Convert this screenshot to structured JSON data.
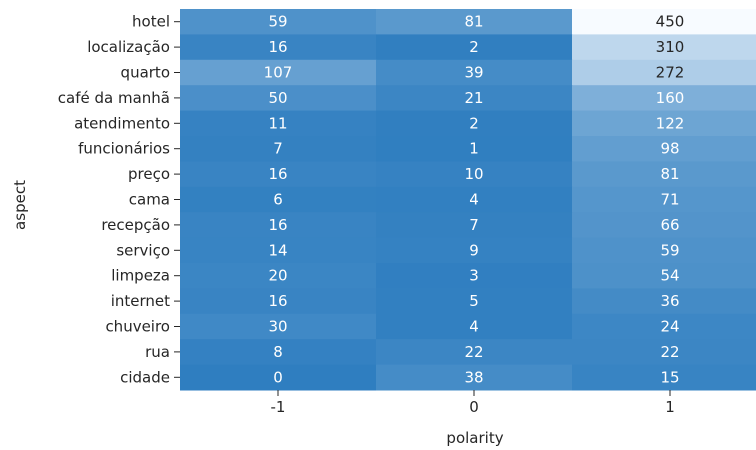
{
  "chart_data": {
    "type": "heatmap",
    "title": "",
    "xlabel": "polarity",
    "ylabel": "aspect",
    "x_categories": [
      "-1",
      "0",
      "1"
    ],
    "y_categories": [
      "hotel",
      "localização",
      "quarto",
      "café da manhã",
      "atendimento",
      "funcionários",
      "preço",
      "cama",
      "recepção",
      "serviço",
      "limpeza",
      "internet",
      "chuveiro",
      "rua",
      "cidade"
    ],
    "values": [
      [
        59,
        81,
        450
      ],
      [
        16,
        2,
        310
      ],
      [
        107,
        39,
        272
      ],
      [
        50,
        21,
        160
      ],
      [
        11,
        2,
        122
      ],
      [
        7,
        1,
        98
      ],
      [
        16,
        10,
        81
      ],
      [
        6,
        4,
        71
      ],
      [
        16,
        7,
        66
      ],
      [
        14,
        9,
        59
      ],
      [
        20,
        3,
        54
      ],
      [
        16,
        5,
        36
      ],
      [
        30,
        4,
        24
      ],
      [
        8,
        22,
        22
      ],
      [
        0,
        38,
        15
      ]
    ],
    "colorscale": "blues (reversed)",
    "color_dark": "#2f7ec0",
    "color_light": "#f7fbff"
  }
}
